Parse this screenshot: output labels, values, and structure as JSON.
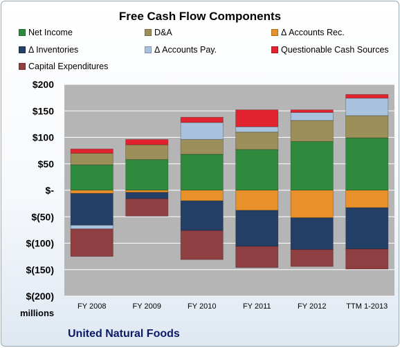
{
  "chart_data": {
    "type": "bar",
    "stacked": true,
    "title": "Free Cash Flow Components",
    "units_label": "millions",
    "company": "United Natural Foods",
    "categories": [
      "FY 2008",
      "FY 2009",
      "FY 2010",
      "FY 2011",
      "FY 2012",
      "TTM 1-2013"
    ],
    "ylim": [
      -200,
      200
    ],
    "yticks": [
      200,
      150,
      100,
      50,
      0,
      -50,
      -100,
      -150,
      -200
    ],
    "ytick_labels": [
      "$200",
      "$150",
      "$100",
      "$50",
      "$-",
      "$(50)",
      "$(100)",
      "$(150)",
      "$(200)"
    ],
    "grid": true,
    "legend_position": "top",
    "series": [
      {
        "name": "Net Income",
        "color": "#2e8b3e",
        "values": [
          48,
          58,
          68,
          77,
          92,
          99
        ]
      },
      {
        "name": "D&A",
        "color": "#9c8f5a",
        "values": [
          22,
          28,
          28,
          33,
          40,
          42
        ]
      },
      {
        "name": "Δ Accounts Rec.",
        "color": "#e8902a",
        "values": [
          -6,
          -4,
          -20,
          -38,
          -52,
          -33
        ]
      },
      {
        "name": "Δ Inventories",
        "color": "#243f66",
        "values": [
          -60,
          -12,
          -56,
          -68,
          -60,
          -78
        ]
      },
      {
        "name": "Δ Accounts Pay.",
        "color": "#a9c2de",
        "values": [
          -7,
          0,
          32,
          10,
          15,
          33
        ]
      },
      {
        "name": "Questionable Cash Sources",
        "color": "#e0232e",
        "values": [
          8,
          10,
          10,
          32,
          5,
          7
        ]
      },
      {
        "name": "Capital Expenditures",
        "color": "#8f3f42",
        "values": [
          -52,
          -33,
          -55,
          -40,
          -32,
          -38
        ]
      }
    ],
    "plot_colors": {
      "plot_background": "#b5b5b5",
      "gridline": "#ffffff"
    }
  }
}
